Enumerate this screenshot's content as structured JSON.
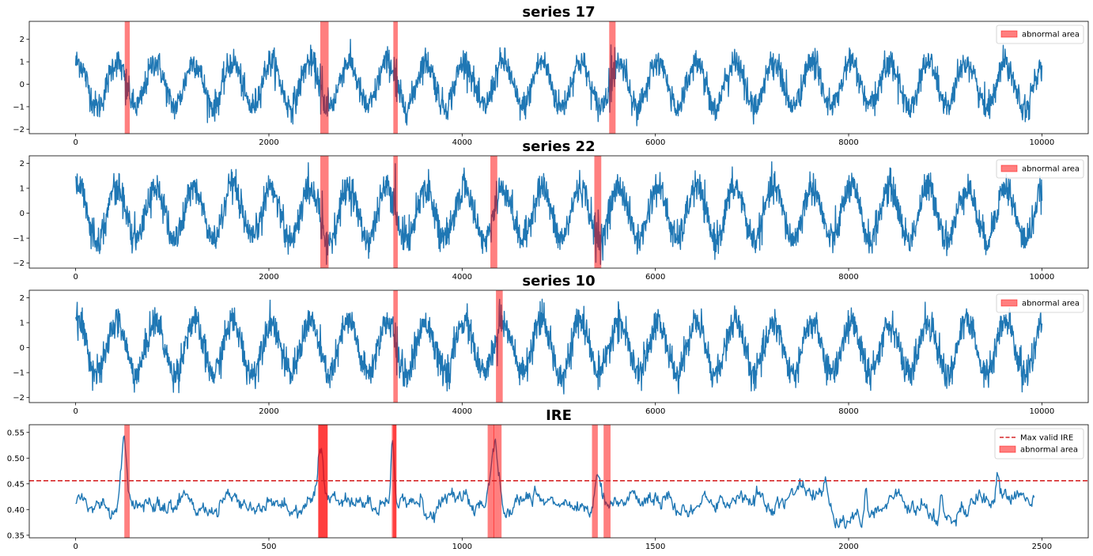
{
  "colors": {
    "line": "#1f77b4",
    "span": "#ff0000",
    "threshold": "#d62728"
  },
  "chart_data": [
    {
      "type": "line",
      "title": "series 17",
      "x_range": [
        0,
        10000
      ],
      "xlim": [
        -480,
        10480
      ],
      "ylim": [
        -2.2,
        2.8
      ],
      "xticks": [
        0,
        2000,
        4000,
        6000,
        8000,
        10000
      ],
      "xtick_labels": [
        "0",
        "2000",
        "4000",
        "6000",
        "8000",
        "10000"
      ],
      "yticks": [
        -2,
        -1,
        0,
        1,
        2
      ],
      "ytick_labels": [
        "−2",
        "−1",
        "0",
        "1",
        "2"
      ],
      "period": 400,
      "amplitude": 1.0,
      "noise": 0.32,
      "spans": [
        [
          508,
          560
        ],
        [
          2532,
          2618
        ],
        [
          3288,
          3334
        ],
        [
          5522,
          5588
        ]
      ],
      "legend": {
        "position": "top-right",
        "entries": [
          {
            "kind": "patch",
            "label": "abnormal area"
          }
        ]
      }
    },
    {
      "type": "line",
      "title": "series 22",
      "x_range": [
        0,
        10000
      ],
      "xlim": [
        -480,
        10480
      ],
      "ylim": [
        -2.2,
        2.3
      ],
      "xticks": [
        0,
        2000,
        4000,
        6000,
        8000,
        10000
      ],
      "xtick_labels": [
        "0",
        "2000",
        "4000",
        "6000",
        "8000",
        "10000"
      ],
      "yticks": [
        -2,
        -1,
        0,
        1,
        2
      ],
      "ytick_labels": [
        "−2",
        "−1",
        "0",
        "1",
        "2"
      ],
      "period": 400,
      "amplitude": 1.05,
      "noise": 0.32,
      "spans": [
        [
          2532,
          2618
        ],
        [
          3288,
          3334
        ],
        [
          4292,
          4364
        ],
        [
          5368,
          5440
        ]
      ],
      "legend": {
        "position": "top-right",
        "entries": [
          {
            "kind": "patch",
            "label": "abnormal area"
          }
        ]
      }
    },
    {
      "type": "line",
      "title": "series 10",
      "x_range": [
        0,
        10000
      ],
      "xlim": [
        -480,
        10480
      ],
      "ylim": [
        -2.2,
        2.3
      ],
      "xticks": [
        0,
        2000,
        4000,
        6000,
        8000,
        10000
      ],
      "xtick_labels": [
        "0",
        "2000",
        "4000",
        "6000",
        "8000",
        "10000"
      ],
      "yticks": [
        -2,
        -1,
        0,
        1,
        2
      ],
      "ytick_labels": [
        "−2",
        "−1",
        "0",
        "1",
        "2"
      ],
      "period": 400,
      "amplitude": 1.05,
      "noise": 0.32,
      "spans": [
        [
          3288,
          3334
        ],
        [
          4350,
          4420
        ]
      ],
      "legend": {
        "position": "top-right",
        "entries": [
          {
            "kind": "patch",
            "label": "abnormal area"
          }
        ]
      }
    },
    {
      "type": "line",
      "title": "IRE",
      "x_range": [
        0,
        2480
      ],
      "xlim": [
        -120,
        2620
      ],
      "ylim": [
        0.345,
        0.565
      ],
      "xticks": [
        0,
        500,
        1000,
        1500,
        2000,
        2500
      ],
      "xtick_labels": [
        "0",
        "500",
        "1000",
        "1500",
        "2000",
        "2500"
      ],
      "yticks": [
        0.35,
        0.4,
        0.45,
        0.5,
        0.55
      ],
      "ytick_labels": [
        "0.35",
        "0.40",
        "0.45",
        "0.50",
        "0.55"
      ],
      "baseline": 0.41,
      "threshold": 0.456,
      "peaks": [
        {
          "x": 125,
          "y": 0.525,
          "w": 10
        },
        {
          "x": 635,
          "y": 0.505,
          "w": 10
        },
        {
          "x": 820,
          "y": 0.545,
          "w": 6
        },
        {
          "x": 1085,
          "y": 0.545,
          "w": 14
        },
        {
          "x": 1350,
          "y": 0.485,
          "w": 10
        },
        {
          "x": 1940,
          "y": 0.478,
          "w": 6
        },
        {
          "x": 2045,
          "y": 0.462,
          "w": 5
        },
        {
          "x": 2240,
          "y": 0.455,
          "w": 5
        },
        {
          "x": 2385,
          "y": 0.455,
          "w": 4
        }
      ],
      "spans": [
        [
          126,
          140
        ],
        [
          629,
          652
        ],
        [
          627,
          652
        ],
        [
          818,
          830
        ],
        [
          821,
          830
        ],
        [
          1066,
          1083
        ],
        [
          1081,
          1102
        ],
        [
          1336,
          1351
        ],
        [
          1366,
          1384
        ]
      ],
      "legend": {
        "position": "top-right",
        "entries": [
          {
            "kind": "dashed-line",
            "label": "Max valid IRE"
          },
          {
            "kind": "patch",
            "label": "abnormal area"
          }
        ]
      }
    }
  ]
}
